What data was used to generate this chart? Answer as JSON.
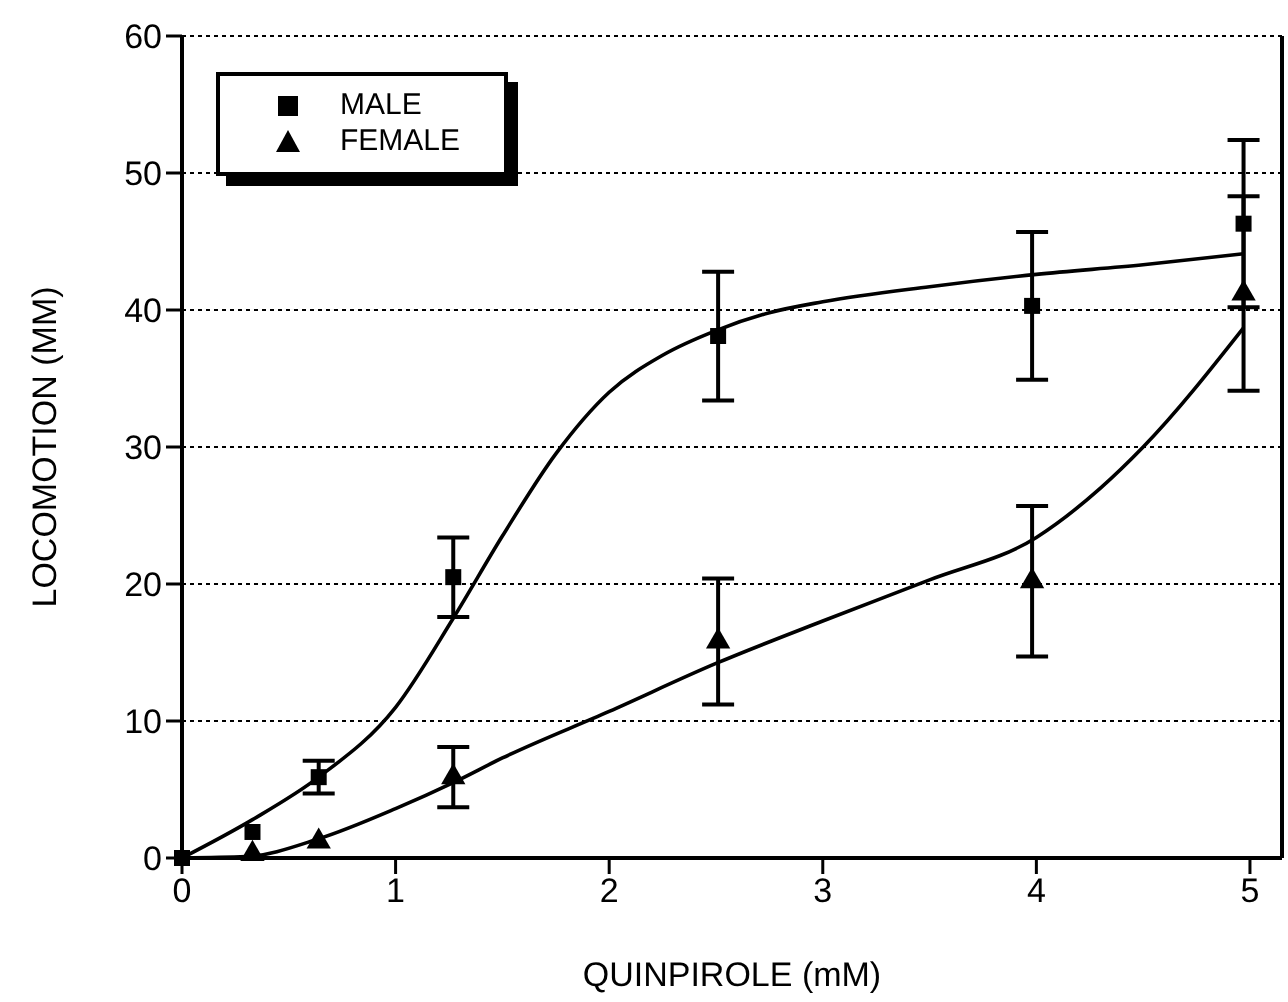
{
  "chart_data": {
    "type": "scatter",
    "xlabel": "QUINPIROLE (mM)",
    "ylabel": "LOCOMOTION (MM)",
    "xlim": [
      0,
      5.15
    ],
    "xticks": [
      0,
      1,
      2,
      3,
      4,
      5
    ],
    "ylim": [
      0,
      60
    ],
    "yticks": [
      0,
      10,
      20,
      30,
      40,
      50,
      60
    ],
    "grid": "y",
    "legend": "top left",
    "series": [
      {
        "name": "MALE",
        "marker": "square",
        "color": "#000000",
        "x": [
          0,
          0.33,
          0.64,
          1.27,
          2.51,
          3.98,
          4.97
        ],
        "values": [
          0,
          1.9,
          5.9,
          20.5,
          38.1,
          40.3,
          46.3
        ],
        "errors": [
          null,
          null,
          1.2,
          2.9,
          4.7,
          5.4,
          6.1
        ]
      },
      {
        "name": "FEMALE",
        "marker": "triangle",
        "color": "#000000",
        "x": [
          0.33,
          0.64,
          1.27,
          2.51,
          3.98,
          4.97
        ],
        "values": [
          0.3,
          1.2,
          5.9,
          15.8,
          20.2,
          41.2
        ],
        "errors": [
          null,
          null,
          2.2,
          4.6,
          5.5,
          7.1
        ]
      },
      {
        "type": "line",
        "marker": "none",
        "color": "#000000",
        "x": [
          0,
          0.33,
          0.64,
          1,
          1.27,
          1.5,
          1.75,
          2,
          2.25,
          2.5,
          2.75,
          3,
          3.5,
          4,
          4.5,
          4.97
        ],
        "values": [
          0,
          2.8,
          5.9,
          11,
          17.5,
          23.5,
          29.5,
          34,
          36.7,
          38.5,
          39.8,
          40.6,
          41.7,
          42.6,
          43.3,
          44.1
        ]
      },
      {
        "type": "line",
        "marker": "none",
        "color": "#000000",
        "x": [
          0,
          0.3,
          0.64,
          1,
          1.27,
          1.5,
          2,
          2.5,
          3,
          3.5,
          4,
          4.3,
          4.5,
          4.97
        ],
        "values": [
          0,
          0.1,
          1.4,
          3.6,
          5.5,
          7.3,
          10.7,
          14.2,
          17.3,
          20.3,
          23.4,
          27,
          30,
          38.7
        ]
      }
    ]
  }
}
